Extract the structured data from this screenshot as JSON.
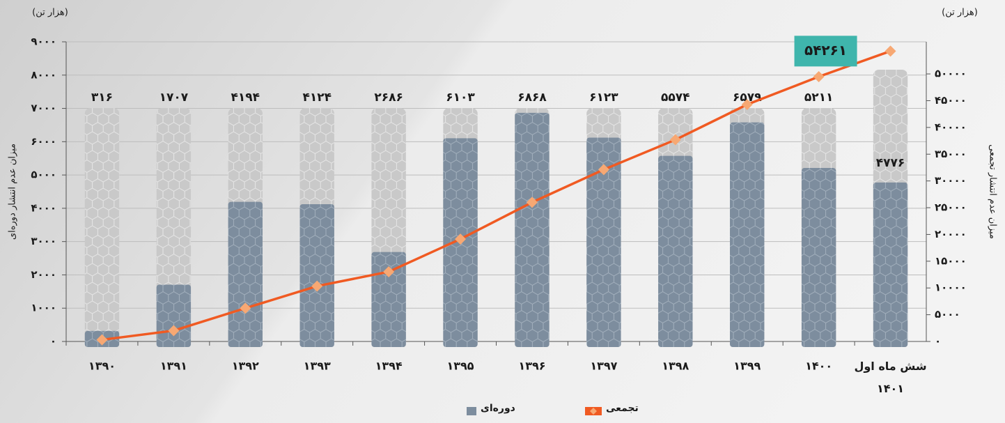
{
  "chart_data": {
    "type": "bar_line",
    "y_unit": "(هزار تن)",
    "y2_unit": "(هزار تن)",
    "ylabel": "میزان عدم انتشار دوره‌ای",
    "y2label": "میزان عدم انتشار تجمعی",
    "categories": [
      "۱۳۹۰",
      "۱۳۹۱",
      "۱۳۹۲",
      "۱۳۹۳",
      "۱۳۹۴",
      "۱۳۹۵",
      "۱۳۹۶",
      "۱۳۹۷",
      "۱۳۹۸",
      "۱۳۹۹",
      "۱۴۰۰",
      "شش ماه اول ۱۴۰۱"
    ],
    "series": [
      {
        "name": "دوره‌ای",
        "type": "bar",
        "color": "#7d8d9e",
        "axis": "y",
        "values": [
          316,
          1707,
          4194,
          4124,
          2686,
          6103,
          6868,
          6123,
          5574,
          6579,
          5211,
          4776
        ],
        "value_labels": [
          "۳۱۶",
          "۱۷۰۷",
          "۴۱۹۴",
          "۴۱۲۴",
          "۲۶۸۶",
          "۶۱۰۳",
          "۶۸۶۸",
          "۶۱۲۳",
          "۵۵۷۴",
          "۶۵۷۹",
          "۵۲۱۱",
          "۴۷۷۶"
        ]
      },
      {
        "name": "تجمعی",
        "type": "line",
        "color": "#f05a22",
        "axis": "y2",
        "values": [
          316,
          2023,
          6217,
          10341,
          13027,
          19130,
          25998,
          32121,
          37695,
          44274,
          49485,
          54261
        ],
        "value_labels": [
          null,
          null,
          null,
          null,
          null,
          null,
          null,
          null,
          null,
          null,
          null,
          "۵۴۲۶۱"
        ]
      }
    ],
    "ylim": [
      0,
      9000
    ],
    "yticks": [
      {
        "value": 0,
        "label": "۰"
      },
      {
        "value": 1000,
        "label": "۱۰۰۰"
      },
      {
        "value": 2000,
        "label": "۲۰۰۰"
      },
      {
        "value": 3000,
        "label": "۳۰۰۰"
      },
      {
        "value": 4000,
        "label": "۴۰۰۰"
      },
      {
        "value": 5000,
        "label": "۵۰۰۰"
      },
      {
        "value": 6000,
        "label": "۶۰۰۰"
      },
      {
        "value": 7000,
        "label": "۷۰۰۰"
      },
      {
        "value": 8000,
        "label": "۸۰۰۰"
      },
      {
        "value": 9000,
        "label": "۹۰۰۰"
      }
    ],
    "y2lim": [
      0,
      56000
    ],
    "y2ticks": [
      {
        "value": 0,
        "label": "۰"
      },
      {
        "value": 5000,
        "label": "۵۰۰۰"
      },
      {
        "value": 10000,
        "label": "۱۰۰۰۰"
      },
      {
        "value": 15000,
        "label": "۱۵۰۰۰"
      },
      {
        "value": 20000,
        "label": "۲۰۰۰۰"
      },
      {
        "value": 25000,
        "label": "۲۵۰۰۰"
      },
      {
        "value": 30000,
        "label": "۳۰۰۰۰"
      },
      {
        "value": 35000,
        "label": "۳۵۰۰۰"
      },
      {
        "value": 40000,
        "label": "۴۰۰۰۰"
      },
      {
        "value": 45000,
        "label": "۴۵۰۰۰"
      },
      {
        "value": 50000,
        "label": "۵۰۰۰۰"
      }
    ],
    "grid": true
  }
}
